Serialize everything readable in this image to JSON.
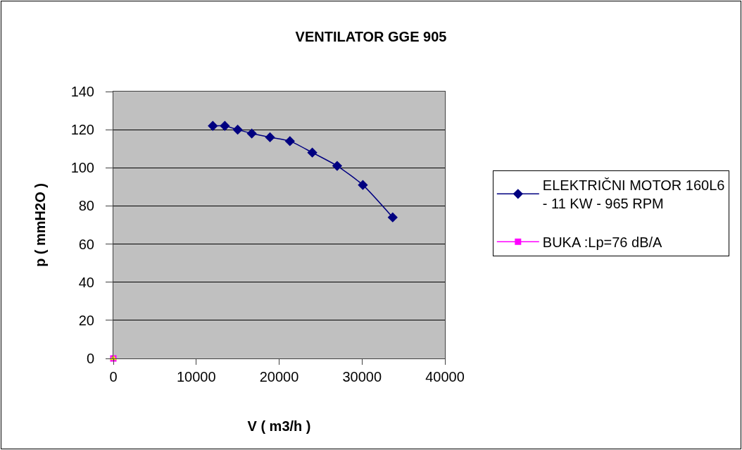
{
  "chart_data": {
    "type": "line",
    "title": "VENTILATOR GGE 905",
    "xlabel": "V ( m3/h )",
    "ylabel": "p ( mmH2O )",
    "xlim": [
      0,
      40000
    ],
    "xticks": [
      0,
      10000,
      20000,
      30000,
      40000
    ],
    "ylim": [
      0,
      140
    ],
    "yticks": [
      0,
      20,
      40,
      60,
      80,
      100,
      120,
      140
    ],
    "grid": "y",
    "legend": "right",
    "series": [
      {
        "name": "ELEKTRIČNI MOTOR 160L6 - 11 KW - 965 RPM",
        "color": "#000080",
        "marker": "diamond",
        "x": [
          12000,
          13450,
          15000,
          16700,
          18900,
          21300,
          24000,
          27000,
          30100,
          33700
        ],
        "values": [
          122,
          122,
          120,
          118,
          116,
          114,
          108,
          101,
          91,
          74
        ]
      },
      {
        "name": "BUKA :Lp=76 dB/A",
        "color": "#ff00ff",
        "marker": "square",
        "x": [
          0
        ],
        "values": [
          0
        ]
      },
      {
        "color": "#ffff00",
        "marker": "triangle",
        "x": [
          0
        ],
        "values": [
          0
        ]
      }
    ]
  }
}
